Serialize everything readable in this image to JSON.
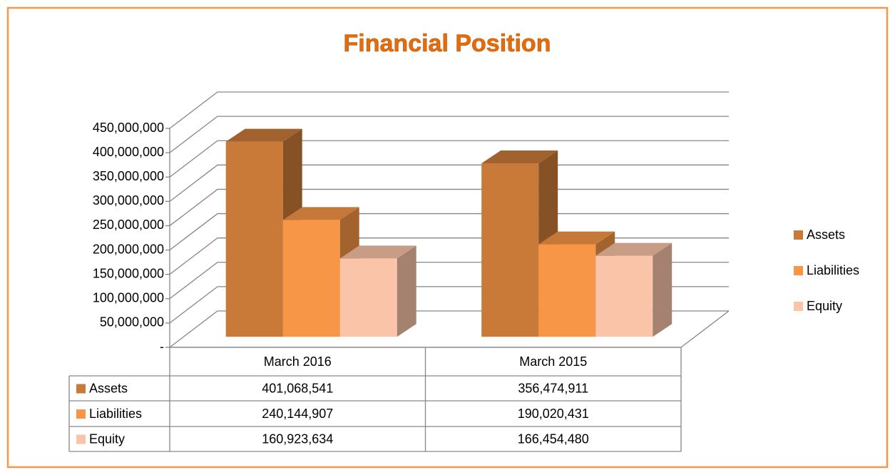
{
  "chart_data": {
    "type": "bar3d",
    "title": "Financial Position",
    "categories": [
      "March 2016",
      "March 2015"
    ],
    "series": [
      {
        "name": "Assets",
        "color": "#c97a38",
        "values": [
          401068541,
          356474911
        ],
        "value_labels": [
          "401,068,541",
          "356,474,911"
        ]
      },
      {
        "name": "Liabilities",
        "color": "#f79646",
        "values": [
          240144907,
          190020431
        ],
        "value_labels": [
          "240,144,907",
          "190,020,431"
        ]
      },
      {
        "name": "Equity",
        "color": "#fac4a8",
        "values": [
          160923634,
          166454480
        ],
        "value_labels": [
          "160,923,634",
          "166,454,480"
        ]
      }
    ],
    "ylim": [
      0,
      450000000
    ],
    "yticks": [
      {
        "value": 0,
        "label": "-"
      },
      {
        "value": 50000000,
        "label": "50,000,000"
      },
      {
        "value": 100000000,
        "label": "100,000,000"
      },
      {
        "value": 150000000,
        "label": "150,000,000"
      },
      {
        "value": 200000000,
        "label": "200,000,000"
      },
      {
        "value": 250000000,
        "label": "250,000,000"
      },
      {
        "value": 300000000,
        "label": "300,000,000"
      },
      {
        "value": 350000000,
        "label": "350,000,000"
      },
      {
        "value": 400000000,
        "label": "400,000,000"
      },
      {
        "value": 450000000,
        "label": "450,000,000"
      }
    ],
    "grid": true,
    "legend": "right",
    "data_table": true
  }
}
